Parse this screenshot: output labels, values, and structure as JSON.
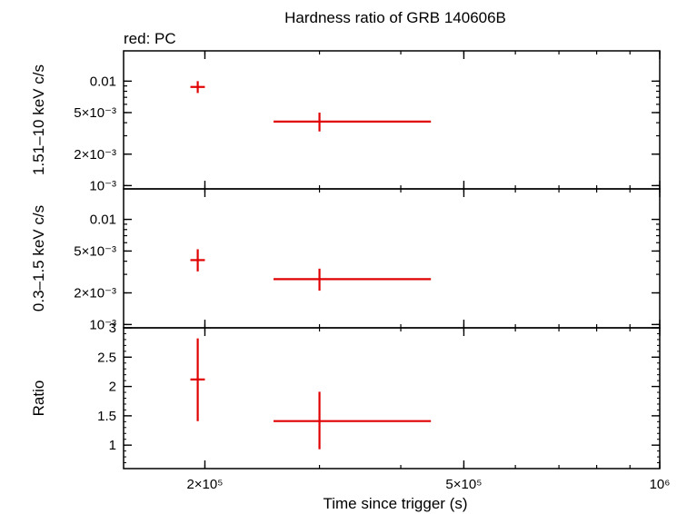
{
  "chart_data": {
    "type": "scatter",
    "title": "Hardness ratio of GRB 140606B",
    "annotation": "red: PC",
    "xlabel": "Time since trigger (s)",
    "xscale": "log",
    "xlim": [
      150000,
      1000000
    ],
    "xticks": [
      {
        "value": 200000,
        "label": "2×10⁵"
      },
      {
        "value": 500000,
        "label": "5×10⁵"
      },
      {
        "value": 1000000,
        "label": "10⁶"
      }
    ],
    "color": "#e00000",
    "panels": [
      {
        "name": "hard",
        "ylabel": "1.51–10 keV c/s",
        "yscale": "log",
        "ylim": [
          0.00093,
          0.0195
        ],
        "yticks": [
          {
            "value": 0.01,
            "label": "0.01"
          },
          {
            "value": 0.005,
            "label": "5×10⁻³"
          },
          {
            "value": 0.002,
            "label": "2×10⁻³"
          },
          {
            "value": 0.001,
            "label": "10⁻³"
          }
        ],
        "points": [
          {
            "x": 195000,
            "xlo": 190000,
            "xhi": 200000,
            "y": 0.0088,
            "ylo": 0.0077,
            "yhi": 0.01
          },
          {
            "x": 300000,
            "xlo": 255000,
            "xhi": 445000,
            "y": 0.0041,
            "ylo": 0.0033,
            "yhi": 0.005
          }
        ]
      },
      {
        "name": "soft",
        "ylabel": "0.3–1.5 keV c/s",
        "yscale": "log",
        "ylim": [
          0.00093,
          0.0195
        ],
        "yticks": [
          {
            "value": 0.01,
            "label": "0.01"
          },
          {
            "value": 0.005,
            "label": "5×10⁻³"
          },
          {
            "value": 0.002,
            "label": "2×10⁻³"
          },
          {
            "value": 0.001,
            "label": "10⁻³"
          }
        ],
        "points": [
          {
            "x": 195000,
            "xlo": 190000,
            "xhi": 200000,
            "y": 0.0041,
            "ylo": 0.0032,
            "yhi": 0.0052
          },
          {
            "x": 300000,
            "xlo": 255000,
            "xhi": 445000,
            "y": 0.0027,
            "ylo": 0.0021,
            "yhi": 0.0034
          }
        ]
      },
      {
        "name": "ratio",
        "ylabel": "Ratio",
        "yscale": "linear",
        "ylim": [
          0.6,
          3.0
        ],
        "yticks": [
          {
            "value": 3,
            "label": "3"
          },
          {
            "value": 2.5,
            "label": "2.5"
          },
          {
            "value": 2,
            "label": "2"
          },
          {
            "value": 1.5,
            "label": "1.5"
          },
          {
            "value": 1,
            "label": "1"
          }
        ],
        "points": [
          {
            "x": 195000,
            "xlo": 190000,
            "xhi": 200000,
            "y": 2.12,
            "ylo": 1.41,
            "yhi": 2.82
          },
          {
            "x": 300000,
            "xlo": 255000,
            "xhi": 445000,
            "y": 1.41,
            "ylo": 0.93,
            "yhi": 1.91
          }
        ]
      }
    ]
  }
}
